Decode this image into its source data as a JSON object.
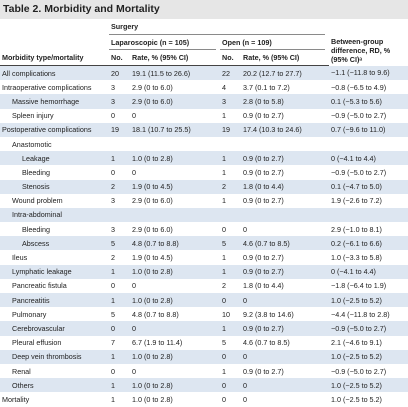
{
  "title": "Table 2. Morbidity and Mortality",
  "headers": {
    "group": "Surgery",
    "lap": "Laparoscopic (n = 105)",
    "open": "Open (n = 109)",
    "type": "Morbidity type/mortality",
    "no": "No.",
    "rate": "Rate, % (95% CI)",
    "rd": "Between-group difference, RD, % (95% CI)ᵃ"
  },
  "rows": [
    {
      "label": "All complications",
      "indent": 0,
      "lap_no": "20",
      "lap_rate": "19.1 (11.5 to 26.6)",
      "open_no": "22",
      "open_rate": "20.2 (12.7 to 27.7)",
      "rd": "−1.1 (−11.8 to 9.6)"
    },
    {
      "label": "Intraoperative complications",
      "indent": 0,
      "lap_no": "3",
      "lap_rate": "2.9 (0 to 6.0)",
      "open_no": "4",
      "open_rate": "3.7 (0.1 to 7.2)",
      "rd": "−0.8 (−6.5 to 4.9)"
    },
    {
      "label": "Massive hemorrhage",
      "indent": 1,
      "lap_no": "3",
      "lap_rate": "2.9 (0 to 6.0)",
      "open_no": "3",
      "open_rate": "2.8 (0 to 5.8)",
      "rd": "0.1 (−5.3 to 5.6)"
    },
    {
      "label": "Spleen injury",
      "indent": 1,
      "lap_no": "0",
      "lap_rate": "0",
      "open_no": "1",
      "open_rate": "0.9 (0 to 2.7)",
      "rd": "−0.9 (−5.0 to 2.7)"
    },
    {
      "label": "Postoperative complications",
      "indent": 0,
      "lap_no": "19",
      "lap_rate": "18.1 (10.7 to 25.5)",
      "open_no": "19",
      "open_rate": "17.4 (10.3 to 24.6)",
      "rd": "0.7 (−9.6 to 11.0)"
    },
    {
      "label": "Anastomotic",
      "indent": 1,
      "lap_no": "",
      "lap_rate": "",
      "open_no": "",
      "open_rate": "",
      "rd": ""
    },
    {
      "label": "Leakage",
      "indent": 2,
      "lap_no": "1",
      "lap_rate": "1.0 (0 to 2.8)",
      "open_no": "1",
      "open_rate": "0.9 (0 to 2.7)",
      "rd": "0 (−4.1 to 4.4)"
    },
    {
      "label": "Bleeding",
      "indent": 2,
      "lap_no": "0",
      "lap_rate": "0",
      "open_no": "1",
      "open_rate": "0.9 (0 to 2.7)",
      "rd": "−0.9 (−5.0 to 2.7)"
    },
    {
      "label": "Stenosis",
      "indent": 2,
      "lap_no": "2",
      "lap_rate": "1.9 (0 to 4.5)",
      "open_no": "2",
      "open_rate": "1.8 (0 to 4.4)",
      "rd": "0.1 (−4.7 to 5.0)"
    },
    {
      "label": "Wound problem",
      "indent": 1,
      "lap_no": "3",
      "lap_rate": "2.9 (0 to 6.0)",
      "open_no": "1",
      "open_rate": "0.9 (0 to 2.7)",
      "rd": "1.9 (−2.6 to 7.2)"
    },
    {
      "label": "Intra-abdominal",
      "indent": 1,
      "lap_no": "",
      "lap_rate": "",
      "open_no": "",
      "open_rate": "",
      "rd": ""
    },
    {
      "label": "Bleeding",
      "indent": 2,
      "lap_no": "3",
      "lap_rate": "2.9 (0 to 6.0)",
      "open_no": "0",
      "open_rate": "0",
      "rd": "2.9 (−1.0 to 8.1)"
    },
    {
      "label": "Abscess",
      "indent": 2,
      "lap_no": "5",
      "lap_rate": "4.8 (0.7 to 8.8)",
      "open_no": "5",
      "open_rate": "4.6 (0.7 to 8.5)",
      "rd": "0.2 (−6.1 to 6.6)"
    },
    {
      "label": "Ileus",
      "indent": 1,
      "lap_no": "2",
      "lap_rate": "1.9 (0 to 4.5)",
      "open_no": "1",
      "open_rate": "0.9 (0 to 2.7)",
      "rd": "1.0 (−3.3 to 5.8)"
    },
    {
      "label": "Lymphatic leakage",
      "indent": 1,
      "lap_no": "1",
      "lap_rate": "1.0 (0 to 2.8)",
      "open_no": "1",
      "open_rate": "0.9 (0 to 2.7)",
      "rd": "0 (−4.1 to 4.4)"
    },
    {
      "label": "Pancreatic fistula",
      "indent": 1,
      "lap_no": "0",
      "lap_rate": "0",
      "open_no": "2",
      "open_rate": "1.8 (0 to 4.4)",
      "rd": "−1.8 (−6.4 to 1.9)"
    },
    {
      "label": "Pancreatitis",
      "indent": 1,
      "lap_no": "1",
      "lap_rate": "1.0 (0 to 2.8)",
      "open_no": "0",
      "open_rate": "0",
      "rd": "1.0 (−2.5 to 5.2)"
    },
    {
      "label": "Pulmonary",
      "indent": 1,
      "lap_no": "5",
      "lap_rate": "4.8 (0.7 to 8.8)",
      "open_no": "10",
      "open_rate": "9.2 (3.8 to 14.6)",
      "rd": "−4.4 (−11.8 to 2.8)"
    },
    {
      "label": "Cerebrovascular",
      "indent": 1,
      "lap_no": "0",
      "lap_rate": "0",
      "open_no": "1",
      "open_rate": "0.9 (0 to 2.7)",
      "rd": "−0.9 (−5.0 to 2.7)"
    },
    {
      "label": "Pleural effusion",
      "indent": 1,
      "lap_no": "7",
      "lap_rate": "6.7 (1.9 to 11.4)",
      "open_no": "5",
      "open_rate": "4.6 (0.7 to 8.5)",
      "rd": "2.1 (−4.6 to 9.1)"
    },
    {
      "label": "Deep vein thrombosis",
      "indent": 1,
      "lap_no": "1",
      "lap_rate": "1.0 (0 to 2.8)",
      "open_no": "0",
      "open_rate": "0",
      "rd": "1.0 (−2.5 to 5.2)"
    },
    {
      "label": "Renal",
      "indent": 1,
      "lap_no": "0",
      "lap_rate": "0",
      "open_no": "1",
      "open_rate": "0.9 (0 to 2.7)",
      "rd": "−0.9 (−5.0 to 2.7)"
    },
    {
      "label": "Others",
      "indent": 1,
      "lap_no": "1",
      "lap_rate": "1.0 (0 to 2.8)",
      "open_no": "0",
      "open_rate": "0",
      "rd": "1.0 (−2.5 to 5.2)"
    },
    {
      "label": "Mortality",
      "indent": 0,
      "lap_no": "1",
      "lap_rate": "1.0 (0 to 2.8)",
      "open_no": "0",
      "open_rate": "0",
      "rd": "1.0 (−2.5 to 5.2)"
    }
  ]
}
